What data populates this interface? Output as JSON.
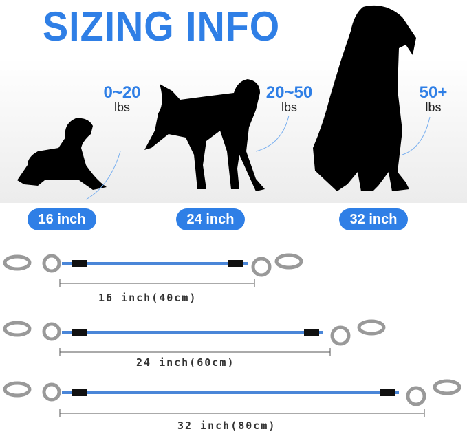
{
  "title": "SIZING INFO",
  "weights": [
    {
      "value": "0~20",
      "unit": "lbs"
    },
    {
      "value": "20~50",
      "unit": "lbs"
    },
    {
      "value": "50+",
      "unit": "lbs"
    }
  ],
  "sizes": [
    "16 inch",
    "24 inch",
    "32 inch"
  ],
  "leashes": [
    "16 inch(40cm)",
    "24 inch(60cm)",
    "32 inch(80cm)"
  ],
  "colors": {
    "accent": "#2f7fe6",
    "leash": "#4a86d8",
    "silhouette": "#000000"
  }
}
